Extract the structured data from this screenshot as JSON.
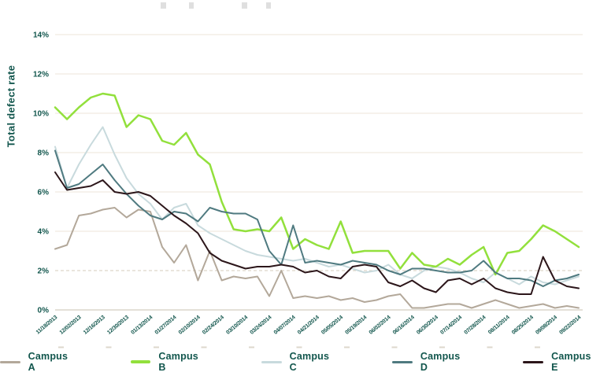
{
  "page": {
    "background": "#ffffff"
  },
  "colors": {
    "axis_text": "#12564d",
    "gridline": "#ece4d9",
    "gridline_dashed": "#d6cbbb",
    "axis_baseline": "#c9c0b2",
    "tick_dash": "#ddd7cc"
  },
  "chart_data": {
    "type": "line",
    "title": "",
    "xlabel": "",
    "ylabel": "Total defect rate",
    "ylim": [
      0,
      14
    ],
    "y_tick_labels": [
      "0%",
      "2%",
      "4%",
      "6%",
      "8%",
      "10%",
      "12%",
      "14%"
    ],
    "grid": {
      "horizontal": true,
      "dashed_level_percent": 2,
      "vertical": false
    },
    "legend_position": "bottom",
    "points_per_series": 45,
    "x_note": "weekly samples; x axis labeled every 2 weeks",
    "x_tick_labels": [
      "11/18/2013",
      "12/02/2013",
      "12/16/2013",
      "12/30/2013",
      "01/13/2014",
      "01/27/2014",
      "02/10/2014",
      "02/24/2014",
      "03/10/2014",
      "03/24/2014",
      "04/07/2014",
      "04/21/2014",
      "05/05/2014",
      "05/19/2014",
      "06/02/2014",
      "06/16/2014",
      "06/30/2014",
      "07/14/2014",
      "07/28/2014",
      "08/11/2014",
      "08/25/2014",
      "09/08/2014",
      "09/22/2014"
    ],
    "series": [
      {
        "name": "Campus A",
        "color": "#b3a89a",
        "width": 2,
        "values": [
          3.1,
          3.3,
          4.8,
          4.9,
          5.1,
          5.2,
          4.7,
          5.1,
          5.0,
          3.2,
          2.4,
          3.3,
          1.5,
          3.0,
          1.5,
          1.7,
          1.6,
          1.7,
          0.7,
          2.0,
          0.6,
          0.7,
          0.6,
          0.7,
          0.5,
          0.6,
          0.4,
          0.5,
          0.7,
          0.8,
          0.1,
          0.1,
          0.2,
          0.3,
          0.3,
          0.1,
          0.3,
          0.5,
          0.3,
          0.1,
          0.2,
          0.3,
          0.1,
          0.2,
          0.1
        ]
      },
      {
        "name": "Campus B",
        "color": "#92e03c",
        "width": 2.5,
        "values": [
          10.3,
          9.7,
          10.3,
          10.8,
          11.0,
          10.9,
          9.3,
          9.9,
          9.7,
          8.6,
          8.4,
          9.0,
          7.9,
          7.4,
          5.5,
          4.1,
          4.0,
          4.1,
          4.0,
          4.7,
          3.1,
          3.6,
          3.3,
          3.1,
          4.5,
          2.9,
          3.0,
          3.0,
          3.0,
          2.1,
          2.9,
          2.3,
          2.2,
          2.6,
          2.3,
          2.8,
          3.2,
          1.8,
          2.9,
          3.0,
          3.6,
          4.3,
          4.0,
          3.6,
          3.2
        ]
      },
      {
        "name": "Campus C",
        "color": "#c8dadd",
        "width": 2,
        "values": [
          8.3,
          6.2,
          7.4,
          8.4,
          9.3,
          7.9,
          6.7,
          5.9,
          5.4,
          4.6,
          5.2,
          5.4,
          4.3,
          3.9,
          3.6,
          3.3,
          3.0,
          2.8,
          2.7,
          2.6,
          2.5,
          2.6,
          2.4,
          2.2,
          2.3,
          2.1,
          1.9,
          2.0,
          2.3,
          1.8,
          1.6,
          2.0,
          2.2,
          2.1,
          1.9,
          1.6,
          1.4,
          1.9,
          1.6,
          1.3,
          1.7,
          1.4,
          1.3,
          1.5,
          1.7
        ]
      },
      {
        "name": "Campus D",
        "color": "#4f7a80",
        "width": 2,
        "values": [
          8.1,
          6.2,
          6.4,
          6.9,
          7.4,
          6.6,
          5.9,
          5.3,
          4.8,
          4.6,
          5.0,
          4.9,
          4.5,
          5.2,
          5.0,
          4.9,
          4.9,
          4.6,
          3.0,
          2.3,
          4.3,
          2.4,
          2.5,
          2.4,
          2.3,
          2.5,
          2.4,
          2.3,
          2.0,
          1.8,
          2.1,
          2.1,
          2.0,
          1.9,
          1.9,
          2.0,
          2.5,
          1.9,
          1.6,
          1.6,
          1.5,
          1.2,
          1.5,
          1.6,
          1.8
        ]
      },
      {
        "name": "Campus E",
        "color": "#2c161a",
        "width": 2,
        "values": [
          7.0,
          6.1,
          6.2,
          6.3,
          6.6,
          6.0,
          5.9,
          6.0,
          5.8,
          5.3,
          4.8,
          4.4,
          3.9,
          2.9,
          2.5,
          2.3,
          2.1,
          2.2,
          2.2,
          2.3,
          2.2,
          1.9,
          2.0,
          1.7,
          1.6,
          2.2,
          2.3,
          2.2,
          1.4,
          1.2,
          1.5,
          1.1,
          0.9,
          1.5,
          1.6,
          1.3,
          1.6,
          1.1,
          0.9,
          0.8,
          0.8,
          2.7,
          1.5,
          1.2,
          1.1
        ]
      }
    ]
  },
  "legend": {
    "items": [
      {
        "label": "Campus A"
      },
      {
        "label": "Campus B"
      },
      {
        "label": "Campus C"
      },
      {
        "label": "Campus D"
      },
      {
        "label": "Campus E"
      }
    ]
  }
}
